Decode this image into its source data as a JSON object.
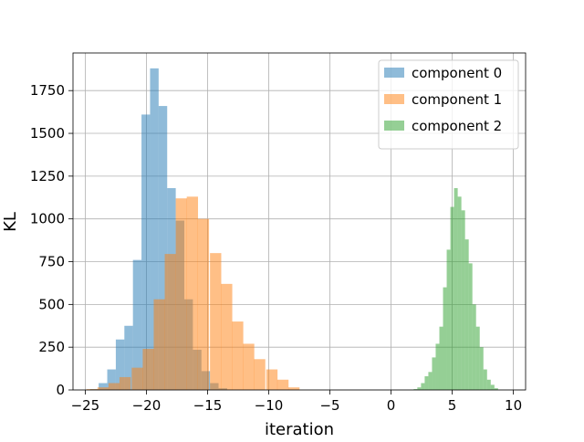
{
  "chart_data": {
    "type": "bar",
    "subtype": "overlapping-histogram",
    "title": "",
    "xlabel": "iteration",
    "ylabel": "KL",
    "xlim": [
      -26,
      11
    ],
    "ylim": [
      0,
      1970
    ],
    "xticks": [
      -25,
      -20,
      -15,
      -10,
      -5,
      0,
      5,
      10
    ],
    "yticks": [
      0,
      250,
      500,
      750,
      1000,
      1250,
      1500,
      1750
    ],
    "grid": true,
    "legend": "top-right",
    "bar_alpha": 0.5,
    "series": [
      {
        "name": "component 0",
        "color": "#1f77b4",
        "bin_width": 0.7,
        "bins": [
          [
            -24.6,
            5
          ],
          [
            -23.9,
            40
          ],
          [
            -23.2,
            120
          ],
          [
            -22.5,
            295
          ],
          [
            -21.8,
            375
          ],
          [
            -21.1,
            760
          ],
          [
            -20.4,
            1610
          ],
          [
            -19.7,
            1880
          ],
          [
            -19.0,
            1660
          ],
          [
            -18.3,
            1180
          ],
          [
            -17.6,
            990
          ],
          [
            -16.9,
            530
          ],
          [
            -16.2,
            235
          ],
          [
            -15.5,
            110
          ],
          [
            -14.8,
            40
          ],
          [
            -14.1,
            10
          ]
        ]
      },
      {
        "name": "component 1",
        "color": "#ff7f0e",
        "bin_width": 0.92,
        "bins": [
          [
            -24.9,
            5
          ],
          [
            -24.0,
            15
          ],
          [
            -23.1,
            40
          ],
          [
            -22.2,
            75
          ],
          [
            -21.2,
            130
          ],
          [
            -20.3,
            240
          ],
          [
            -19.4,
            530
          ],
          [
            -18.5,
            795
          ],
          [
            -17.6,
            1120
          ],
          [
            -16.7,
            1130
          ],
          [
            -15.8,
            1000
          ],
          [
            -14.8,
            800
          ],
          [
            -13.9,
            620
          ],
          [
            -13.0,
            400
          ],
          [
            -12.1,
            270
          ],
          [
            -11.2,
            180
          ],
          [
            -10.2,
            120
          ],
          [
            -9.3,
            60
          ],
          [
            -8.4,
            15
          ]
        ]
      },
      {
        "name": "component 2",
        "color": "#2ca02c",
        "bin_width": 0.3,
        "bins": [
          [
            1.85,
            5
          ],
          [
            2.15,
            15
          ],
          [
            2.45,
            40
          ],
          [
            2.75,
            80
          ],
          [
            3.05,
            105
          ],
          [
            3.35,
            190
          ],
          [
            3.65,
            270
          ],
          [
            3.95,
            370
          ],
          [
            4.25,
            600
          ],
          [
            4.55,
            820
          ],
          [
            4.85,
            1070
          ],
          [
            5.15,
            1180
          ],
          [
            5.45,
            1130
          ],
          [
            5.75,
            1050
          ],
          [
            6.05,
            880
          ],
          [
            6.35,
            740
          ],
          [
            6.65,
            500
          ],
          [
            6.95,
            370
          ],
          [
            7.25,
            250
          ],
          [
            7.55,
            120
          ],
          [
            7.85,
            60
          ],
          [
            8.15,
            30
          ],
          [
            8.45,
            10
          ]
        ]
      }
    ]
  }
}
